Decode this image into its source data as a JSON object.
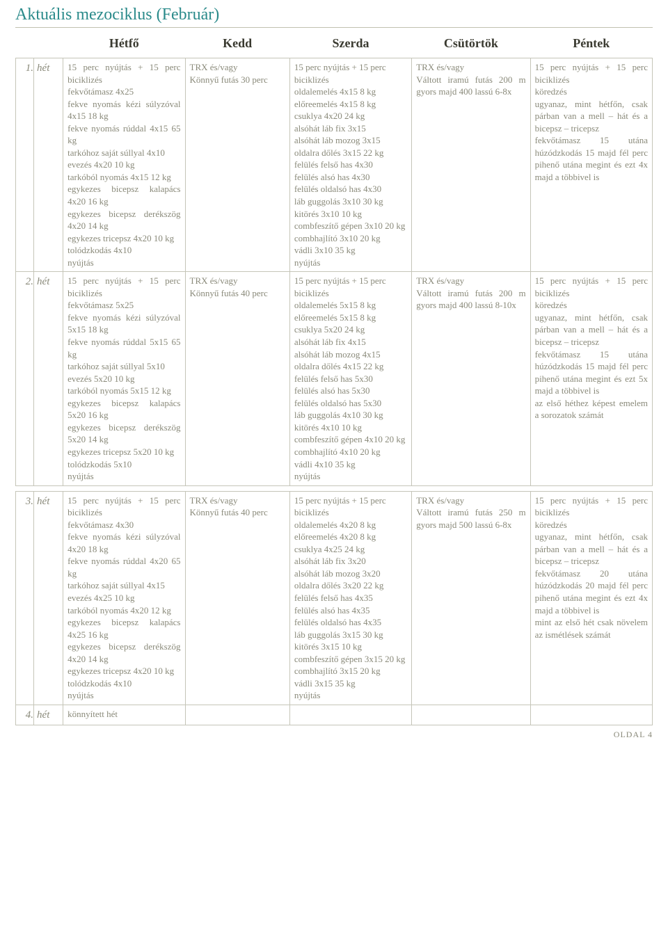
{
  "title": "Aktuális mezociklus (Február)",
  "headers": {
    "hetfo": "Hétfő",
    "kedd": "Kedd",
    "szerda": "Szerda",
    "csutortok": "Csütörtök",
    "pentek": "Péntek"
  },
  "rows": [
    {
      "num": "1.",
      "label": "hét",
      "hetfo": "15 perc nyújtás + 15 perc biciklizés\nfekvőtámasz 4x25\nfekve nyomás kézi súlyzóval 4x15 18 kg\nfekve nyomás rúddal 4x15 65 kg\ntarkóhoz saját súllyal 4x10\nevezés 4x20 10 kg\ntarkóból nyomás 4x15 12 kg\negykezes bicepsz kalapács 4x20 16 kg\negykezes bicepsz derékszög 4x20 14 kg\negykezes tricepsz 4x20 10 kg\ntolódzkodás 4x10\nnyújtás",
      "kedd": "TRX és/vagy\nKönnyű futás 30 perc",
      "szerda": "15 perc nyújtás + 15 perc biciklizés\noldalemelés 4x15 8 kg\nelőreemelés 4x15 8 kg\ncsuklya 4x20 24 kg\nalsóhát láb fix 3x15\nalsóhát láb mozog 3x15\noldalra dőlés 3x15 22 kg\nfelülés felső has 4x30\nfelülés alsó has 4x30\nfelülés oldalsó has 4x30\nláb guggolás 3x10 30 kg\nkitörés 3x10 10 kg\ncombfeszítő gépen 3x10 20 kg\ncombhajlító 3x10 20 kg\nvádli 3x10 35 kg\nnyújtás",
      "csutortok": "TRX és/vagy\nVáltott iramú futás 200 m gyors majd 400 lassú 6-8x",
      "pentek": "15 perc nyújtás + 15 perc biciklizés\nköredzés\nugyanaz, mint hétfőn, csak párban van a mell – hát és a bicepsz – tricepsz\nfekvőtámasz 15 utána húzódzkodás 15 majd fél perc pihenő utána megint és ezt 4x majd a többivel is"
    },
    {
      "num": "2.",
      "label": "hét",
      "hetfo": "15 perc nyújtás + 15 perc biciklizés\nfekvőtámasz 5x25\nfekve nyomás kézi súlyzóval 5x15 18 kg\nfekve nyomás rúddal 5x15 65 kg\ntarkóhoz saját súllyal 5x10\nevezés 5x20 10 kg\ntarkóból nyomás 5x15 12 kg\negykezes bicepsz kalapács 5x20 16 kg\negykezes bicepsz derékszög 5x20 14 kg\negykezes tricepsz 5x20 10 kg\ntolódzkodás 5x10\nnyújtás",
      "kedd": "TRX és/vagy\nKönnyű futás 40 perc",
      "szerda": "15 perc nyújtás + 15 perc biciklizés\noldalemelés 5x15 8 kg\nelőreemelés 5x15 8 kg\ncsuklya 5x20 24 kg\nalsóhát láb fix 4x15\nalsóhát láb mozog 4x15\noldalra dőlés 4x15 22 kg\nfelülés felső has 5x30\nfelülés alsó has 5x30\nfelülés oldalsó has 5x30\nláb guggolás 4x10 30 kg\nkitörés 4x10 10 kg\ncombfeszítő gépen 4x10 20 kg\ncombhajlító 4x10 20 kg\nvádli 4x10 35 kg\nnyújtás",
      "csutortok": "TRX és/vagy\nVáltott iramú futás 200 m gyors majd 400 lassú 8-10x",
      "pentek": "15 perc nyújtás + 15 perc biciklizés\nköredzés\nugyanaz, mint hétfőn, csak párban van a mell – hát és a bicepsz – tricepsz\nfekvőtámasz 15 utána húzódzkodás 15 majd fél perc pihenő utána megint és ezt 5x majd a többivel is\naz első héthez képest emelem a sorozatok számát"
    },
    {
      "num": "3.",
      "label": "hét",
      "hetfo": "15 perc nyújtás + 15 perc biciklizés\nfekvőtámasz 4x30\nfekve nyomás kézi súlyzóval 4x20 18 kg\nfekve nyomás rúddal 4x20 65 kg\ntarkóhoz saját súllyal 4x15\nevezés 4x25 10 kg\ntarkóból nyomás 4x20 12 kg\negykezes bicepsz kalapács 4x25 16 kg\negykezes bicepsz derékszög 4x20 14 kg\negykezes tricepsz 4x20 10 kg\ntolódzkodás 4x10\nnyújtás",
      "kedd": "TRX és/vagy\nKönnyű futás 40 perc",
      "szerda": "15 perc nyújtás + 15 perc biciklizés\noldalemelés 4x20 8 kg\nelőreemelés 4x20 8 kg\ncsuklya 4x25 24 kg\nalsóhát láb fix 3x20\nalsóhát láb mozog 3x20\noldalra dőlés 3x20 22 kg\nfelülés felső has 4x35\nfelülés alsó has 4x35\nfelülés oldalsó has 4x35\nláb guggolás 3x15 30 kg\nkitörés 3x15 10 kg\ncombfeszítő gépen 3x15 20 kg\ncombhajlító 3x15 20 kg\nvádli 3x15 35 kg\nnyújtás",
      "csutortok": "TRX és/vagy\nVáltott iramú futás 250 m gyors majd 500 lassú 6-8x",
      "pentek": "15 perc nyújtás + 15 perc biciklizés\nköredzés\nugyanaz, mint hétfőn, csak párban van a mell – hát és a bicepsz – tricepsz\nfekvőtámasz 20 utána húzódzkodás 20 majd fél perc pihenő utána megint és ezt 4x majd a többivel is\nmint az első hét csak növelem az ismétlések számát"
    },
    {
      "num": "4.",
      "label": "hét",
      "hetfo": "könnyített hét",
      "kedd": "",
      "szerda": "",
      "csutortok": "",
      "pentek": ""
    }
  ],
  "footer": "OLDAL 4",
  "colors": {
    "title": "#2a8a8a",
    "header_text": "#3a3a30",
    "body_text": "#8a8a7a",
    "border": "#c5c5b8",
    "background": "#ffffff"
  },
  "typography": {
    "title_fontsize": 24,
    "header_fontsize": 18,
    "cell_fontsize": 13,
    "rowlabel_fontsize": 15
  }
}
